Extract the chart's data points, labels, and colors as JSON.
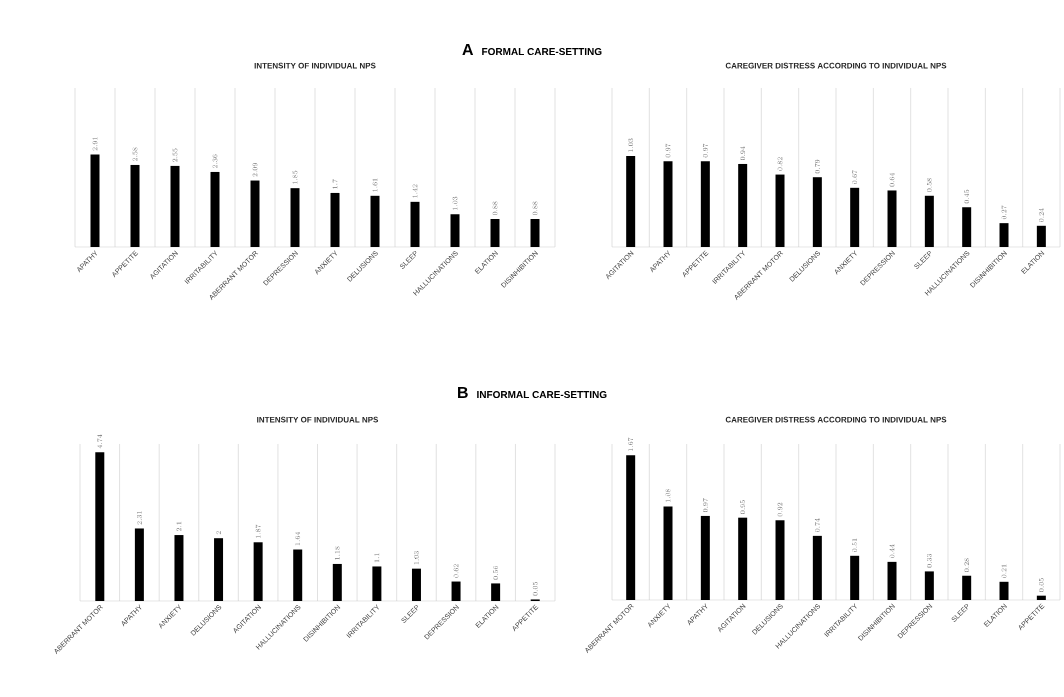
{
  "chart_data": [
    {
      "type": "bar",
      "title": "INTENSITY OF INDIVIDUAL NPS",
      "annotations": [
        "A",
        "FORMAL CARE-SETTING"
      ],
      "categories": [
        "APATHY",
        "APPETITE",
        "AGITATION",
        "IRRITABILITY",
        "ABERRANT MOTOR",
        "DEPRESSION",
        "ANXIETY",
        "DELUSIONS",
        "SLEEP",
        "HALLUCINATIONS",
        "ELATION",
        "DISINHIBITION"
      ],
      "values": [
        2.91,
        2.58,
        2.55,
        2.36,
        2.09,
        1.85,
        1.7,
        1.61,
        1.42,
        1.03,
        0.88,
        0.88
      ],
      "color": "#000000",
      "ylim": [
        0,
        5
      ],
      "data_labels": true,
      "grid": "x"
    },
    {
      "type": "bar",
      "title": "CAREGIVER DISTRESS ACCORDING TO INDIVIDUAL NPS",
      "categories": [
        "AGITATION",
        "APATHY",
        "APPETITE",
        "IRRITABILITY",
        "ABERRANT MOTOR",
        "DELUSIONS",
        "ANXIETY",
        "DEPRESSION",
        "SLEEP",
        "HALLUCINATIONS",
        "DISINHIBITION",
        "ELATION"
      ],
      "values": [
        1.03,
        0.97,
        0.97,
        0.94,
        0.82,
        0.79,
        0.67,
        0.64,
        0.58,
        0.45,
        0.27,
        0.24
      ],
      "color": "#000000",
      "ylim": [
        0,
        1.8
      ],
      "data_labels": true,
      "grid": "x"
    },
    {
      "type": "bar",
      "title": "INTENSITY OF INDIVIDUAL NPS",
      "annotations": [
        "B",
        "INFORMAL CARE-SETTING"
      ],
      "categories": [
        "ABERRANT MOTOR",
        "APATHY",
        "ANXIETY",
        "DELUSIONS",
        "AGITATION",
        "HALLUCINATIONS",
        "DISINHIBITION",
        "IRRITABILITY",
        "SLEEP",
        "DEPRESSION",
        "ELATION",
        "APPETITE"
      ],
      "values": [
        4.74,
        2.31,
        2.1,
        2,
        1.87,
        1.64,
        1.18,
        1.1,
        1.03,
        0.62,
        0.56,
        0.05
      ],
      "color": "#000000",
      "ylim": [
        0,
        5
      ],
      "data_labels": true,
      "grid": "x"
    },
    {
      "type": "bar",
      "title": "CAREGIVER DISTRESS ACCORDING TO INDIVIDUAL NPS",
      "categories": [
        "ABERRANT MOTOR",
        "ANXIETY",
        "APATHY",
        "AGITATION",
        "DELUSIONS",
        "HALLUCINATIONS",
        "IRRITABILITY",
        "DISINHIBITION",
        "DEPRESSION",
        "SLEEP",
        "ELATION",
        "APPETITE"
      ],
      "values": [
        1.67,
        1.08,
        0.97,
        0.95,
        0.92,
        0.74,
        0.51,
        0.44,
        0.33,
        0.28,
        0.21,
        0.05
      ],
      "color": "#000000",
      "ylim": [
        0,
        1.8
      ],
      "data_labels": true,
      "grid": "x"
    }
  ]
}
